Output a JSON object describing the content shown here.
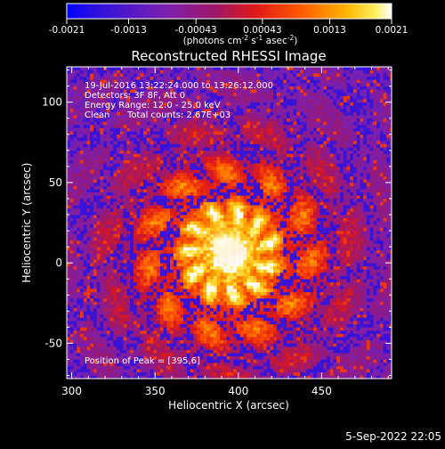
{
  "colorbar": {
    "ticks": [
      "-0.0021",
      "-0.0013",
      "-0.00043",
      "0.00043",
      "0.0013",
      "0.0021"
    ],
    "min": -0.0021,
    "max": 0.0021,
    "unit_base": "(photons cm",
    "unit_exp1": "-2",
    "unit_mid1": " s",
    "unit_exp2": "-1",
    "unit_mid2": " asec",
    "unit_exp3": "-2",
    "unit_end": ")"
  },
  "chart_data": {
    "type": "heatmap",
    "title": "Reconstructed RHESSI Image",
    "xlabel": "Heliocentric X (arcsec)",
    "ylabel": "Heliocentric Y (arcsec)",
    "xlim": [
      297,
      492
    ],
    "ylim": [
      -72,
      122
    ],
    "xticks": [
      300,
      350,
      400,
      450
    ],
    "yticks": [
      -50,
      0,
      50,
      100
    ],
    "peak": [
      395,
      6
    ],
    "colormap": "rhessi-hot (blue-purple-red-yellow-white)"
  },
  "annotations": {
    "time_range": "19-Jul-2016 13:22:24.000 to 13:26:12.000",
    "detectors": "Detectors: 3F 8F, Att 0",
    "energy": "Energy Range: 12.0 - 25.0 keV",
    "method": "Clean",
    "counts": "Total counts: 2.67E+03",
    "peak_label": "Position of Peak = [395,6]"
  },
  "footer": {
    "date": "5-Sep-2022 22:05"
  }
}
